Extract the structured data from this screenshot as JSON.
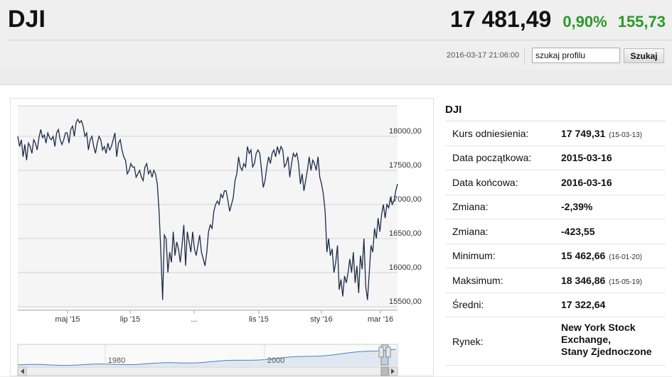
{
  "header": {
    "ticker": "DJI",
    "price": "17 481,49",
    "change_percent": "0,90%",
    "change_value": "155,73",
    "timestamp": "2016-03-17 21:06:00",
    "search": {
      "value": "szukaj profilu",
      "button": "Szukaj"
    }
  },
  "colors": {
    "positive": "#2a9a2a",
    "line": "#1c2b4a",
    "navigator_line": "#4a7fbf"
  },
  "chart_data": {
    "type": "line",
    "series": [
      {
        "values": [
          18000,
          17850,
          17950,
          17700,
          17880,
          17650,
          17900,
          17850,
          17750,
          17950,
          17900,
          17800,
          17980,
          18100,
          17980,
          18020,
          17900,
          18050,
          17980,
          17950,
          18000,
          17850,
          18050,
          18100,
          17950,
          17880,
          17950,
          18050,
          18050,
          17900,
          18100,
          18150,
          18000,
          18200,
          18250,
          18200,
          18230,
          18150,
          18000,
          18050,
          17800,
          17950,
          18000,
          17850,
          17750,
          17900,
          18000,
          17950,
          17800,
          17850,
          17750,
          17900,
          17800,
          17850,
          17950,
          18050,
          17700,
          17900,
          17950,
          17800,
          17700,
          17650,
          17450,
          17500,
          17600,
          17550,
          17550,
          17400,
          17450,
          17500,
          17400,
          17350,
          17550,
          17600,
          17450,
          17500,
          17400,
          17500,
          17450,
          17300,
          16900,
          16300,
          15600,
          16550,
          16500,
          16000,
          16300,
          16150,
          16600,
          16250,
          16450,
          16350,
          16150,
          16400,
          16700,
          16100,
          16600,
          16450,
          16300,
          16600,
          16350,
          16250,
          16400,
          16550,
          16300,
          16200,
          16100,
          16300,
          16600,
          16700,
          16650,
          16900,
          17000,
          17050,
          17000,
          17150,
          17100,
          17200,
          17200,
          17050,
          16900,
          17000,
          17100,
          17350,
          17450,
          17700,
          17550,
          17500,
          17600,
          17550,
          17850,
          17750,
          17800,
          17550,
          17600,
          17750,
          17800,
          17750,
          17500,
          17250,
          17350,
          17550,
          17700,
          17600,
          17750,
          17800,
          17700,
          17850,
          17750,
          17850,
          17800,
          17550,
          17600,
          17700,
          17400,
          17600,
          17750,
          17700,
          17750,
          17600,
          17300,
          17450,
          17200,
          17350,
          17500,
          17700,
          17500,
          17650,
          17600,
          17500,
          17700,
          17400,
          17300,
          17150,
          16900,
          16300,
          16500,
          16250,
          16350,
          16000,
          16150,
          16400,
          15750,
          15900,
          15650,
          15950,
          15850,
          16000,
          16200,
          16000,
          16300,
          15850,
          16100,
          15700,
          16250,
          16050,
          16500,
          15800,
          15600,
          16000,
          16400,
          16300,
          16650,
          16500,
          16800,
          16600,
          16850,
          17000,
          16800,
          17000,
          16950,
          17100,
          17000,
          17050,
          17200,
          17300
        ]
      }
    ],
    "x_tick_labels": [
      "maj '15",
      "lip '15",
      "...",
      "lis '15",
      "sty '16",
      "mar '16"
    ],
    "y_tick_labels": [
      "18000,00",
      "17500,00",
      "17000,00",
      "16500,00",
      "16000,00",
      "15500,00"
    ],
    "ylim": [
      15462.66,
      18346.86
    ],
    "navigator": {
      "labels": [
        "1980",
        "2000"
      ]
    }
  },
  "info": {
    "title": "DJI",
    "rows": [
      {
        "label": "Kurs odniesienia:",
        "value": "17 749,31",
        "note": "(15-03-13)"
      },
      {
        "label": "Data początkowa:",
        "value": "2015-03-16",
        "note": ""
      },
      {
        "label": "Data końcowa:",
        "value": "2016-03-16",
        "note": ""
      },
      {
        "label": "Zmiana:",
        "value": "-2,39%",
        "note": ""
      },
      {
        "label": "Zmiana:",
        "value": "-423,55",
        "note": ""
      },
      {
        "label": "Minimum:",
        "value": "15 462,66",
        "note": "(16-01-20)"
      },
      {
        "label": "Maksimum:",
        "value": "18 346,86",
        "note": "(15-05-19)"
      },
      {
        "label": "Średni:",
        "value": "17 322,64",
        "note": ""
      }
    ],
    "market": {
      "label": "Rynek:",
      "lines": [
        "New York Stock",
        "Exchange,",
        "Stany Zjednoczone"
      ]
    }
  }
}
